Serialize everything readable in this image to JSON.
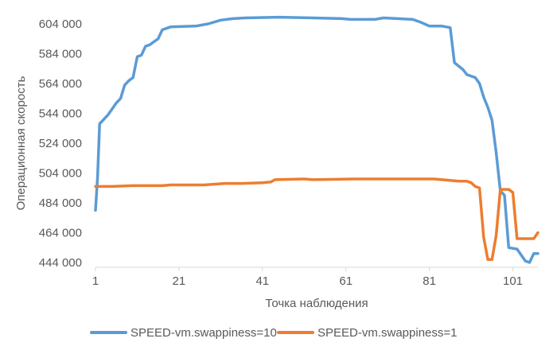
{
  "chart_data": {
    "type": "line",
    "xlabel": "Точка наблюдения",
    "ylabel": "Операционная скорость",
    "xlim": [
      1,
      107
    ],
    "ylim": [
      444000,
      604000
    ],
    "y_ticks": [
      444000,
      464000,
      484000,
      504000,
      524000,
      544000,
      564000,
      584000,
      604000
    ],
    "y_tick_labels": [
      "444 000",
      "464 000",
      "484 000",
      "504 000",
      "524 000",
      "544 000",
      "564 000",
      "584 000",
      "604 000"
    ],
    "x_ticks": [
      1,
      21,
      41,
      61,
      81,
      101
    ],
    "x_tick_labels": [
      "1",
      "21",
      "41",
      "61",
      "81",
      "101"
    ],
    "grid": false,
    "legend_position": "bottom",
    "series": [
      {
        "name": "SPEED-vm.swappiness=10",
        "color": "#5B9BD5",
        "points": [
          [
            1,
            479000
          ],
          [
            1.5,
            501000
          ],
          [
            2,
            537000
          ],
          [
            3,
            540000
          ],
          [
            4,
            543000
          ],
          [
            5,
            547000
          ],
          [
            6,
            551000
          ],
          [
            7,
            554000
          ],
          [
            8,
            563000
          ],
          [
            9,
            566000
          ],
          [
            10,
            568000
          ],
          [
            11,
            582000
          ],
          [
            12,
            583000
          ],
          [
            13,
            589000
          ],
          [
            14,
            590000
          ],
          [
            15,
            592000
          ],
          [
            16,
            594000
          ],
          [
            17,
            600000
          ],
          [
            19,
            602000
          ],
          [
            25,
            602500
          ],
          [
            28,
            604000
          ],
          [
            31,
            606500
          ],
          [
            34,
            607500
          ],
          [
            37,
            608000
          ],
          [
            45,
            608500
          ],
          [
            53,
            608000
          ],
          [
            60,
            607500
          ],
          [
            62,
            607000
          ],
          [
            68,
            607000
          ],
          [
            70,
            608000
          ],
          [
            77,
            607000
          ],
          [
            79,
            605000
          ],
          [
            81,
            602500
          ],
          [
            84,
            602500
          ],
          [
            86,
            601500
          ],
          [
            87,
            578000
          ],
          [
            89,
            573500
          ],
          [
            90,
            570000
          ],
          [
            92,
            568000
          ],
          [
            93,
            564000
          ],
          [
            94,
            555000
          ],
          [
            95,
            548000
          ],
          [
            96,
            539500
          ],
          [
            97,
            518000
          ],
          [
            98,
            492000
          ],
          [
            99,
            489000
          ],
          [
            100,
            454000
          ],
          [
            102,
            453000
          ],
          [
            103,
            449000
          ],
          [
            104,
            445000
          ],
          [
            105,
            444000
          ],
          [
            106,
            450000
          ],
          [
            107,
            450000
          ]
        ]
      },
      {
        "name": "SPEED-vm.swappiness=1",
        "color": "#ED7D31",
        "points": [
          [
            1,
            495000
          ],
          [
            5,
            495000
          ],
          [
            10,
            495500
          ],
          [
            17,
            495500
          ],
          [
            19,
            496000
          ],
          [
            27,
            496000
          ],
          [
            32,
            497000
          ],
          [
            36,
            497000
          ],
          [
            41,
            497500
          ],
          [
            43,
            498000
          ],
          [
            44,
            499500
          ],
          [
            51,
            500000
          ],
          [
            53,
            499500
          ],
          [
            63,
            500000
          ],
          [
            82,
            500000
          ],
          [
            84,
            499500
          ],
          [
            88,
            498500
          ],
          [
            90,
            498500
          ],
          [
            91,
            497500
          ],
          [
            92,
            495000
          ],
          [
            93,
            494000
          ],
          [
            94,
            461000
          ],
          [
            95,
            446000
          ],
          [
            96,
            446000
          ],
          [
            97,
            462000
          ],
          [
            98,
            493000
          ],
          [
            100,
            493000
          ],
          [
            101,
            491000
          ],
          [
            102,
            460000
          ],
          [
            104,
            460000
          ],
          [
            106,
            460000
          ],
          [
            107,
            464000
          ]
        ]
      }
    ]
  }
}
